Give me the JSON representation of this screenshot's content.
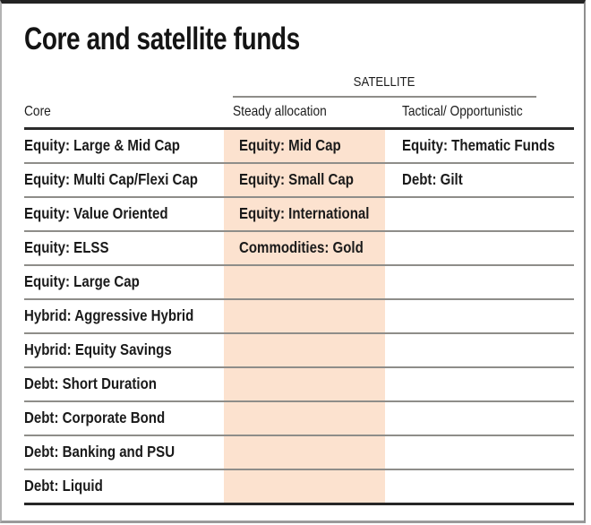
{
  "title": "Core and satellite funds",
  "table": {
    "group_header": "SATELLITE",
    "columns": [
      "Core",
      "Steady allocation",
      "Tactical/ Opportunistic"
    ],
    "rows": [
      {
        "core": "Equity: Large & Mid Cap",
        "steady": "Equity: Mid Cap",
        "tactical": "Equity: Thematic Funds"
      },
      {
        "core": "Equity: Multi Cap/Flexi Cap",
        "steady": "Equity: Small Cap",
        "tactical": "Debt: Gilt"
      },
      {
        "core": "Equity: Value Oriented",
        "steady": "Equity: International",
        "tactical": ""
      },
      {
        "core": "Equity: ELSS",
        "steady": "Commodities: Gold",
        "tactical": ""
      },
      {
        "core": "Equity: Large Cap",
        "steady": "",
        "tactical": ""
      },
      {
        "core": "Hybrid: Aggressive Hybrid",
        "steady": "",
        "tactical": ""
      },
      {
        "core": "Hybrid: Equity Savings",
        "steady": "",
        "tactical": ""
      },
      {
        "core": "Debt: Short Duration",
        "steady": "",
        "tactical": ""
      },
      {
        "core": "Debt: Corporate Bond",
        "steady": "",
        "tactical": ""
      },
      {
        "core": "Debt: Banking and PSU",
        "steady": "",
        "tactical": ""
      },
      {
        "core": "Debt: Liquid",
        "steady": "",
        "tactical": ""
      }
    ]
  },
  "colors": {
    "highlight_band": "#fce2cf",
    "row_divider": "#8e8d89",
    "header_rule": "#2b2b2b",
    "text": "#1a1a1a"
  },
  "chart_data": {
    "type": "table",
    "title": "Core and satellite funds",
    "group_header": {
      "label": "SATELLITE",
      "spans_columns": [
        "Steady allocation",
        "Tactical/ Opportunistic"
      ]
    },
    "columns": [
      "Core",
      "Steady allocation",
      "Tactical/ Opportunistic"
    ],
    "rows": [
      [
        "Equity: Large & Mid Cap",
        "Equity: Mid Cap",
        "Equity: Thematic Funds"
      ],
      [
        "Equity: Multi Cap/Flexi Cap",
        "Equity: Small Cap",
        "Debt: Gilt"
      ],
      [
        "Equity: Value Oriented",
        "Equity: International",
        ""
      ],
      [
        "Equity: ELSS",
        "Commodities: Gold",
        ""
      ],
      [
        "Equity: Large Cap",
        "",
        ""
      ],
      [
        "Hybrid: Aggressive Hybrid",
        "",
        ""
      ],
      [
        "Hybrid: Equity Savings",
        "",
        ""
      ],
      [
        "Debt: Short Duration",
        "",
        ""
      ],
      [
        "Debt: Corporate Bond",
        "",
        ""
      ],
      [
        "Debt: Banking and PSU",
        "",
        ""
      ],
      [
        "Debt: Liquid",
        "",
        ""
      ]
    ],
    "layout_hints": {
      "highlighted_column": "Steady allocation",
      "highlight_color": "#fce2cf",
      "grid": "horizontal rules only"
    }
  }
}
